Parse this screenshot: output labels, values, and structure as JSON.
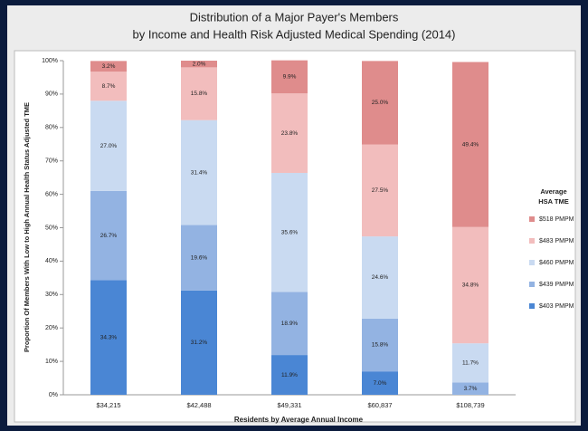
{
  "chart_data": {
    "type": "stacked_bar",
    "title": [
      "Distribution of a Major Payer's Members",
      "by Income and Health Risk Adjusted Medical Spending (2014)"
    ],
    "x_label": "Residents by Average Annual Income",
    "y_label": "Proportion Of Members With Low to High Annual Health Status Adjusted TME",
    "legend_title": [
      "Average",
      "HSA TME"
    ],
    "legend_position": "right",
    "categories": [
      "$34,215",
      "$42,488",
      "$49,331",
      "$60,837",
      "$108,739"
    ],
    "ylim": [
      0,
      100
    ],
    "yticks": [
      {
        "value": 0,
        "label": "0%"
      },
      {
        "value": 10,
        "label": "10%"
      },
      {
        "value": 20,
        "label": "20%"
      },
      {
        "value": 30,
        "label": "30%"
      },
      {
        "value": 40,
        "label": "40%"
      },
      {
        "value": 50,
        "label": "50%"
      },
      {
        "value": 60,
        "label": "60%"
      },
      {
        "value": 70,
        "label": "70%"
      },
      {
        "value": 80,
        "label": "80%"
      },
      {
        "value": 90,
        "label": "90%"
      },
      {
        "value": 100,
        "label": "100%"
      }
    ],
    "series": [
      {
        "name": "$403  PMPM",
        "color": "#4a86d4",
        "values": [
          34.3,
          31.2,
          11.9,
          7.0,
          0
        ],
        "value_labels": [
          "34.3%",
          "31.2%",
          "11.9%",
          "7.0%",
          null
        ]
      },
      {
        "name": "$439  PMPM",
        "color": "#93b3e2",
        "values": [
          26.7,
          19.6,
          18.9,
          15.8,
          3.7
        ],
        "value_labels": [
          "26.7%",
          "19.6%",
          "18.9%",
          "15.8%",
          "3.7%"
        ]
      },
      {
        "name": "$460  PMPM",
        "color": "#c9daf1",
        "values": [
          27.0,
          31.4,
          35.6,
          24.6,
          11.7
        ],
        "value_labels": [
          "27.0%",
          "31.4%",
          "35.6%",
          "24.6%",
          "11.7%"
        ]
      },
      {
        "name": "$483  PMPM",
        "color": "#f2bdbd",
        "values": [
          8.7,
          15.8,
          23.8,
          27.5,
          34.8
        ],
        "value_labels": [
          "8.7%",
          "15.8%",
          "23.8%",
          "27.5%",
          "34.8%"
        ]
      },
      {
        "name": "$518  PMPM",
        "color": "#df8c8c",
        "values": [
          3.2,
          2.0,
          9.9,
          25.0,
          49.4
        ],
        "value_labels": [
          "3.2%",
          "2.0%",
          "9.9%",
          "25.0%",
          "49.4%"
        ]
      }
    ]
  }
}
